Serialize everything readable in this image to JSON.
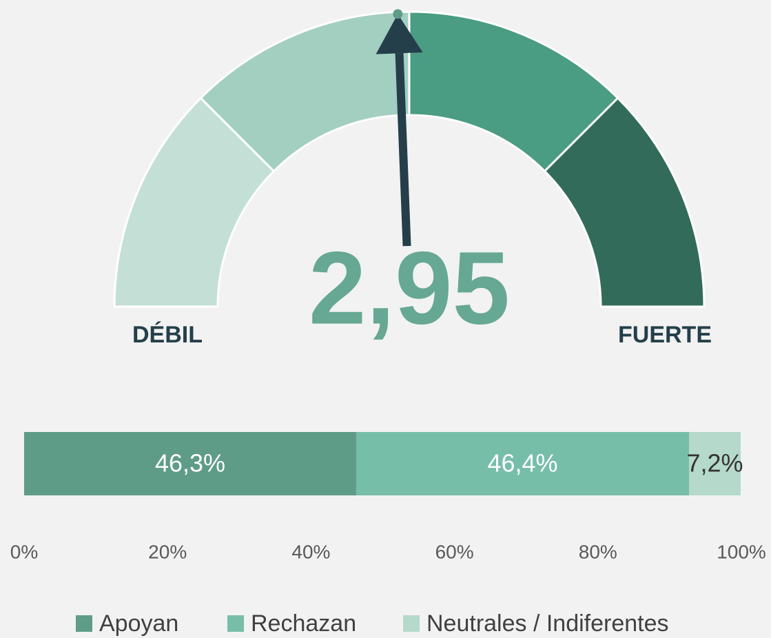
{
  "chart_data": [
    {
      "type": "gauge",
      "value": 2.95,
      "value_label": "2,95",
      "gaugelim": [
        1,
        5
      ],
      "min_label": "DÉBIL",
      "max_label": "FUERTE"
    },
    {
      "type": "bar",
      "orientation": "horizontal",
      "stacked": true,
      "xlim": [
        0,
        100
      ],
      "xticks": [
        {
          "value": 0,
          "label": "0%"
        },
        {
          "value": 20,
          "label": "20%"
        },
        {
          "value": 40,
          "label": "40%"
        },
        {
          "value": 60,
          "label": "60%"
        },
        {
          "value": 80,
          "label": "80%"
        },
        {
          "value": 100,
          "label": "100%"
        }
      ],
      "series": [
        {
          "name": "Apoyan",
          "color": "#5f9c88",
          "values": [
            46.3
          ],
          "value_labels": [
            "46,3%"
          ]
        },
        {
          "name": "Rechazan",
          "color": "#77bea8",
          "values": [
            46.4
          ],
          "value_labels": [
            "46,4%"
          ]
        },
        {
          "name": "Neutrales / Indiferentes",
          "color": "#b5d9cb",
          "values": [
            7.2
          ],
          "value_labels": [
            "7,2%"
          ]
        }
      ],
      "legend": "bottom"
    }
  ]
}
